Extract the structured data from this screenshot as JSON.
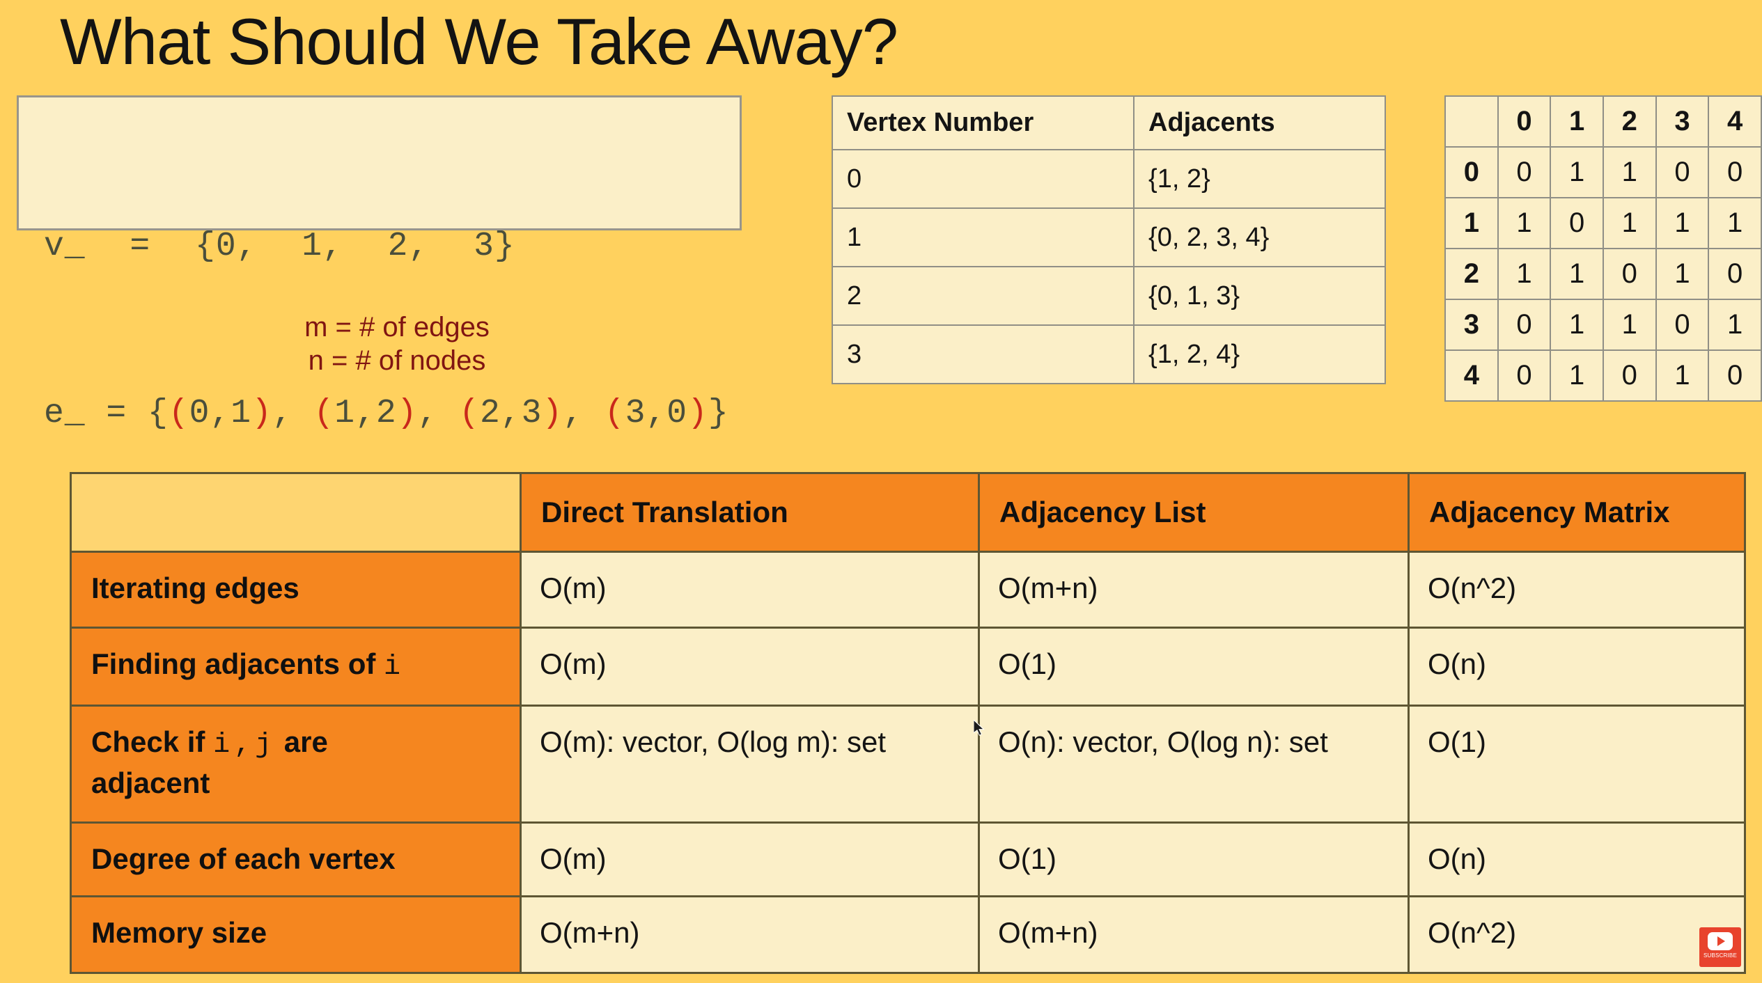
{
  "title": "What Should We Take Away?",
  "code_box": {
    "vertices_label": "v_",
    "vertices_items": [
      "0",
      "1",
      "2",
      "3"
    ],
    "edges_label": "e_",
    "edge_tuples": [
      "0,1",
      "1,2",
      "2,3",
      "3,0"
    ]
  },
  "notes": {
    "line1": "m = # of edges",
    "line2": "n = # of nodes"
  },
  "vertex_table": {
    "headers": [
      "Vertex Number",
      "Adjacents"
    ],
    "rows": [
      {
        "vertex": "0",
        "adjacents": "{1, 2}"
      },
      {
        "vertex": "1",
        "adjacents": "{0, 2, 3, 4}"
      },
      {
        "vertex": "2",
        "adjacents": "{0, 1, 3}"
      },
      {
        "vertex": "3",
        "adjacents": "{1, 2, 4}"
      }
    ]
  },
  "adjacency_matrix": {
    "col_headers": [
      "0",
      "1",
      "2",
      "3",
      "4"
    ],
    "rows": [
      {
        "label": "0",
        "values": [
          "0",
          "1",
          "1",
          "0",
          "0"
        ]
      },
      {
        "label": "1",
        "values": [
          "1",
          "0",
          "1",
          "1",
          "1"
        ]
      },
      {
        "label": "2",
        "values": [
          "1",
          "1",
          "0",
          "1",
          "0"
        ]
      },
      {
        "label": "3",
        "values": [
          "0",
          "1",
          "1",
          "0",
          "1"
        ]
      },
      {
        "label": "4",
        "values": [
          "0",
          "1",
          "0",
          "1",
          "0"
        ]
      }
    ]
  },
  "comparison_table": {
    "col_headers": [
      "Direct Translation",
      "Adjacency List",
      "Adjacency Matrix"
    ],
    "rows": [
      {
        "label_parts": [
          {
            "t": "Iterating edges"
          }
        ],
        "values": [
          "O(m)",
          "O(m+n)",
          "O(n^2)"
        ]
      },
      {
        "label_parts": [
          {
            "t": "Finding adjacents of "
          },
          {
            "t": "i",
            "mono": true
          }
        ],
        "values": [
          "O(m)",
          "O(1)",
          "O(n)"
        ]
      },
      {
        "label_parts": [
          {
            "t": "Check if "
          },
          {
            "t": "i,j",
            "mono": true
          },
          {
            "t": " are"
          },
          {
            "br": true
          },
          {
            "t": "adjacent"
          }
        ],
        "values": [
          "O(m): vector, O(log m): set",
          "O(n): vector, O(log n): set",
          "O(1)"
        ]
      },
      {
        "label_parts": [
          {
            "t": "Degree of each vertex"
          }
        ],
        "values": [
          "O(m)",
          "O(1)",
          "O(n)"
        ]
      },
      {
        "label_parts": [
          {
            "t": "Memory size"
          }
        ],
        "values": [
          "O(m+n)",
          "O(m+n)",
          "O(n^2)"
        ]
      }
    ]
  },
  "subscribe_button": {
    "label": "SUBSCRIBE"
  },
  "colors": {
    "page_bg": "#FFD15E",
    "cream_cell": "#FBEFC8",
    "orange_cell": "#F5861F",
    "corner_cell": "#FED571",
    "note_red": "#801512",
    "code_paren_red": "#C9281B",
    "big_table_border": "#5E5633",
    "small_table_border": "#908F86",
    "subscribe_red": "#E8432D"
  }
}
